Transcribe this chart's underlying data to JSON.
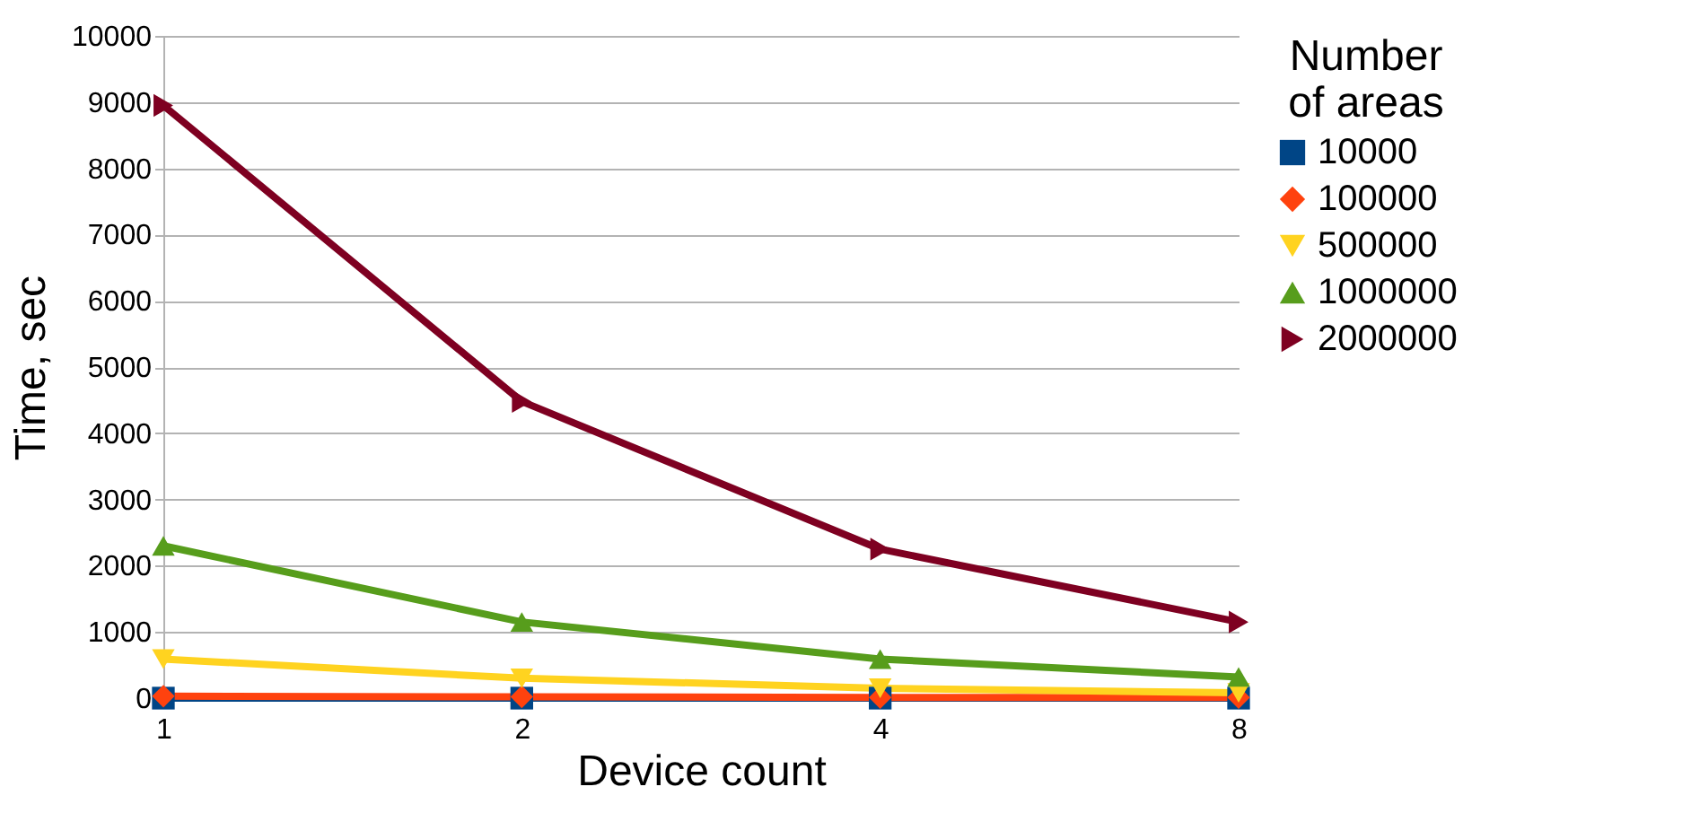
{
  "chart_data": {
    "type": "line",
    "xlabel": "Device count",
    "ylabel": "Time, sec",
    "legend_title": "Number of areas",
    "categories": [
      "1",
      "2",
      "4",
      "8"
    ],
    "series": [
      {
        "name": "10000",
        "color": "#004586",
        "marker": "square",
        "values": [
          0,
          0,
          0,
          0
        ]
      },
      {
        "name": "100000",
        "color": "#ff420e",
        "marker": "diamond",
        "values": [
          30,
          20,
          10,
          10
        ]
      },
      {
        "name": "500000",
        "color": "#ffd320",
        "marker": "triangle-down",
        "values": [
          590,
          300,
          150,
          80
        ]
      },
      {
        "name": "1000000",
        "color": "#579d1c",
        "marker": "triangle",
        "values": [
          2300,
          1150,
          590,
          320
        ]
      },
      {
        "name": "2000000",
        "color": "#7e0021",
        "marker": "triangle-right",
        "values": [
          8950,
          4480,
          2250,
          1150
        ]
      }
    ],
    "ylim": [
      0,
      10000
    ],
    "yticks": [
      0,
      1000,
      2000,
      3000,
      4000,
      5000,
      6000,
      7000,
      8000,
      9000,
      10000
    ],
    "grid": "y",
    "legend": "right"
  }
}
